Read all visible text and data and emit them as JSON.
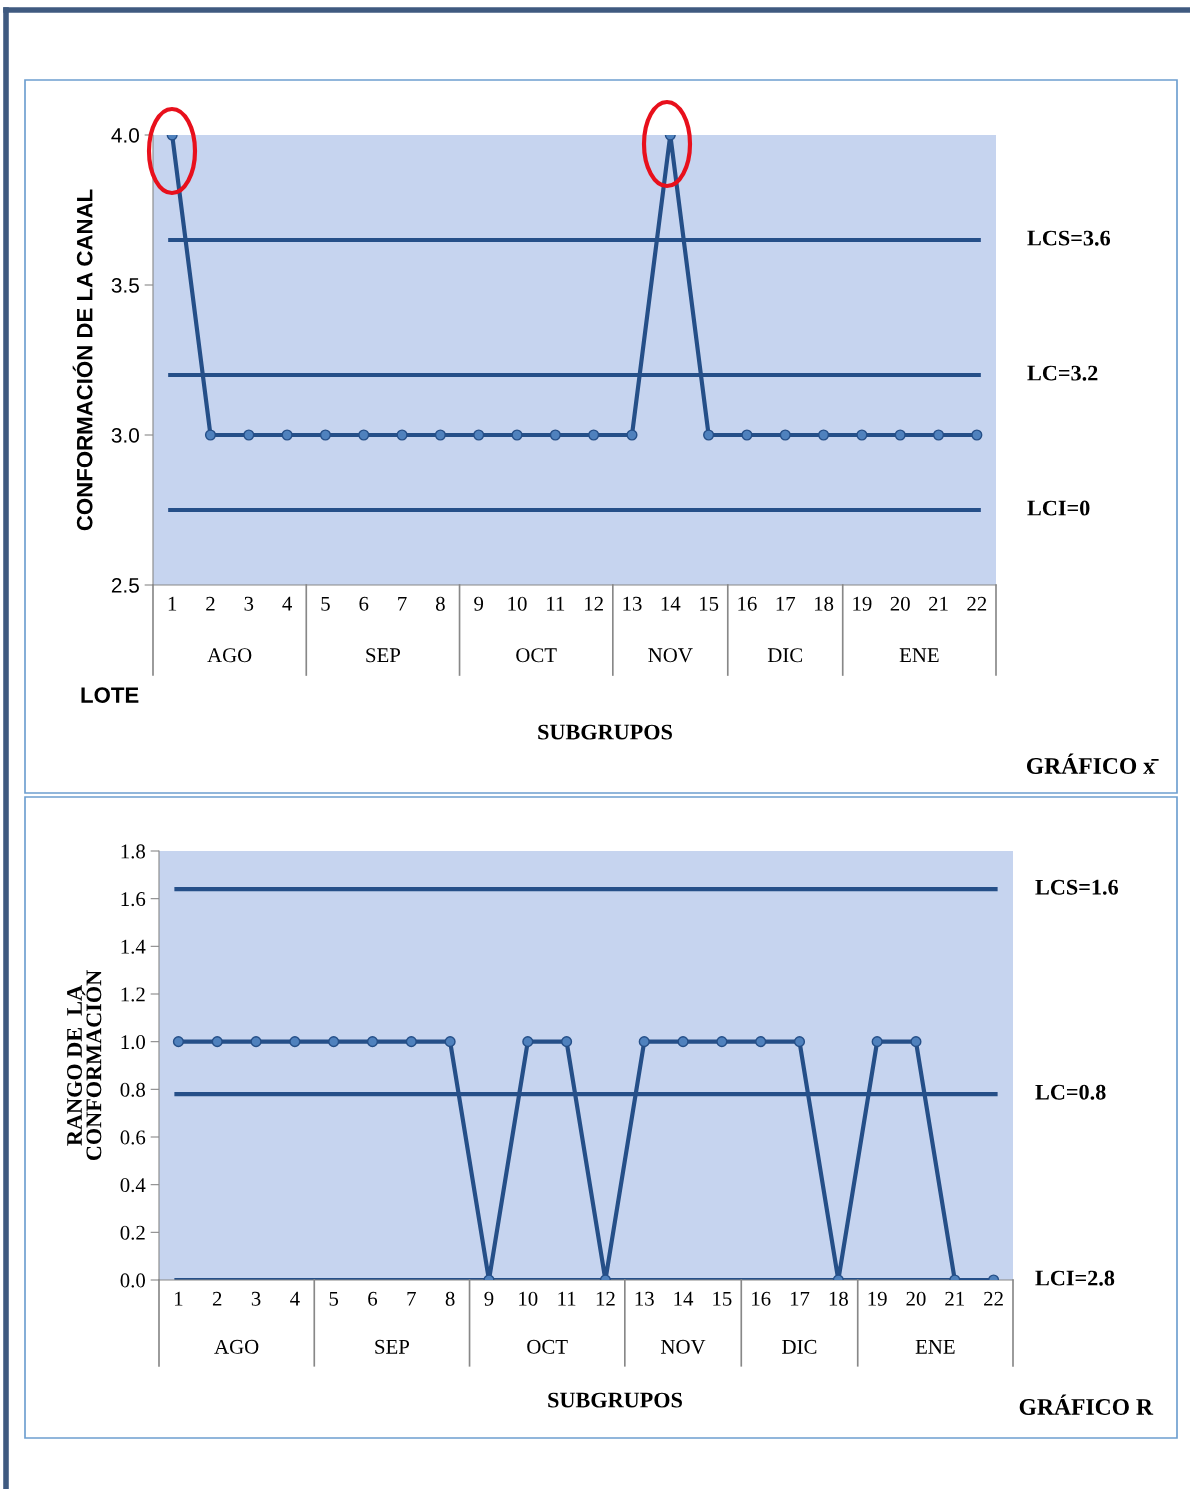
{
  "chart_data": [
    {
      "type": "line",
      "ylabel": "CONFORMACIÓN DE LA CANAL",
      "xlabel": "SUBGRUPOS",
      "categories": [
        "1",
        "2",
        "3",
        "4",
        "5",
        "6",
        "7",
        "8",
        "9",
        "10",
        "11",
        "12",
        "13",
        "14",
        "15",
        "16",
        "17",
        "18",
        "19",
        "20",
        "21",
        "22"
      ],
      "series": [
        {
          "color": "#254f88",
          "marker": "circle",
          "values": [
            4.0,
            3.0,
            3.0,
            3.0,
            3.0,
            3.0,
            3.0,
            3.0,
            3.0,
            3.0,
            3.0,
            3.0,
            3.0,
            4.0,
            3.0,
            3.0,
            3.0,
            3.0,
            3.0,
            3.0,
            3.0,
            3.0
          ]
        }
      ],
      "ylim": [
        2.5,
        4.0
      ],
      "yticks": [
        {
          "value": 2.5,
          "label": "2.5"
        },
        {
          "value": 3.0,
          "label": "3.0"
        },
        {
          "value": 3.5,
          "label": "3.5"
        },
        {
          "value": 4.0,
          "label": "4.0"
        }
      ],
      "ref_lines": [
        {
          "axis": "y",
          "value": 3.65,
          "color": "#254f88"
        },
        {
          "axis": "y",
          "value": 3.2,
          "color": "#254f88"
        },
        {
          "axis": "y",
          "value": 2.75,
          "color": "#254f88"
        }
      ],
      "annotations": [
        "LCS=3.6",
        "LC=3.2",
        "LCI=0",
        "AGO",
        "SEP",
        "OCT",
        "NOV",
        "DIC",
        "ENE",
        "LOTE",
        "GRÁFICO x̄"
      ],
      "grid": false
    },
    {
      "type": "line",
      "ylabel": "RANGO DE  LA\nCONFORMACIÓN",
      "xlabel": "SUBGRUPOS",
      "categories": [
        "1",
        "2",
        "3",
        "4",
        "5",
        "6",
        "7",
        "8",
        "9",
        "10",
        "11",
        "12",
        "13",
        "14",
        "15",
        "16",
        "17",
        "18",
        "19",
        "20",
        "21",
        "22"
      ],
      "series": [
        {
          "color": "#254f88",
          "marker": "circle",
          "values": [
            1.0,
            1.0,
            1.0,
            1.0,
            1.0,
            1.0,
            1.0,
            1.0,
            0.0,
            1.0,
            1.0,
            0.0,
            1.0,
            1.0,
            1.0,
            1.0,
            1.0,
            0.0,
            1.0,
            1.0,
            0.0,
            0.0
          ]
        }
      ],
      "ylim": [
        0.0,
        1.8
      ],
      "yticks": [
        {
          "value": 0.0,
          "label": "0.0"
        },
        {
          "value": 0.2,
          "label": "0.2"
        },
        {
          "value": 0.4,
          "label": "0.4"
        },
        {
          "value": 0.6,
          "label": "0.6"
        },
        {
          "value": 0.8,
          "label": "0.8"
        },
        {
          "value": 1.0,
          "label": "1.0"
        },
        {
          "value": 1.2,
          "label": "1.2"
        },
        {
          "value": 1.4,
          "label": "1.4"
        },
        {
          "value": 1.6,
          "label": "1.6"
        },
        {
          "value": 1.8,
          "label": "1.8"
        }
      ],
      "ref_lines": [
        {
          "axis": "y",
          "value": 1.64,
          "color": "#254f88"
        },
        {
          "axis": "y",
          "value": 0.78,
          "color": "#254f88"
        },
        {
          "axis": "y",
          "value": 0.0,
          "color": "#254f88"
        }
      ],
      "annotations": [
        "LCS=1.6",
        "LC=0.8",
        "LCI=2.8",
        "AGO",
        "SEP",
        "OCT",
        "NOV",
        "DIC",
        "ENE",
        "GRÁFICO R"
      ],
      "grid": false
    }
  ]
}
